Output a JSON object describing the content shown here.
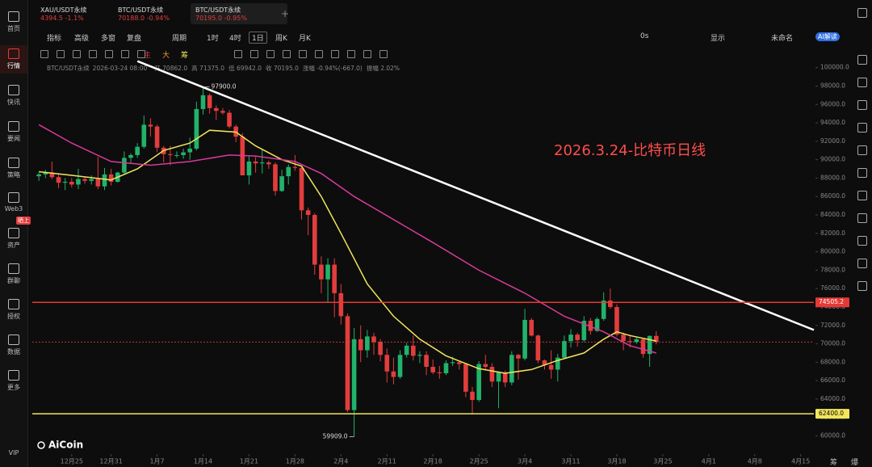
{
  "tabs": [
    {
      "symbol": "XAU/USDT永续",
      "price": "4394.5",
      "change": "-1.1%"
    },
    {
      "symbol": "BTC/USDT永续",
      "price": "70188.0",
      "change": "-0.94%"
    },
    {
      "symbol": "BTC/USDT永续",
      "price": "70195.0",
      "change": "-0.95%"
    }
  ],
  "sidebar": [
    "首页",
    "行情",
    "快讯",
    "要闻",
    "策略",
    "Web3",
    "资产",
    "群聊",
    "授权",
    "数据",
    "更多",
    "VIP"
  ],
  "sidebar_badge": "晒上",
  "toolbar": [
    "指标",
    "高级",
    "多窗",
    "复盘",
    "周期"
  ],
  "periods": [
    "1时",
    "4时",
    "1日",
    "周K",
    "月K"
  ],
  "toolbar_right": [
    "0s",
    "显示",
    "未命名",
    "AI解读"
  ],
  "draw_tools": [
    "主",
    "大",
    "筹"
  ],
  "info": [
    "BTC/USDT永续",
    "2026-03-24 08:00",
    "开 70862.0",
    "高 71375.0",
    "低 69942.0",
    "收 70195.0",
    "涨幅 -0.94%(-667.0)",
    "振幅 2.02%"
  ],
  "watermark": "AiCoin",
  "corner": [
    "筹",
    "爆"
  ],
  "chart_data": {
    "type": "candlestick",
    "title": "2026.3.24-比特币日线",
    "up_color": "#22b26b",
    "down_color": "#e23d3d",
    "grid": false,
    "xlim": [
      "12-19",
      "04-17"
    ],
    "ylim": [
      58200,
      100500
    ],
    "xticks": [
      {
        "value": "12-25",
        "label": "12月25"
      },
      {
        "value": "12-31",
        "label": "12月31"
      },
      {
        "value": "01-07",
        "label": "1月7"
      },
      {
        "value": "01-14",
        "label": "1月14"
      },
      {
        "value": "01-21",
        "label": "1月21"
      },
      {
        "value": "01-28",
        "label": "1月28"
      },
      {
        "value": "02-04",
        "label": "2月4"
      },
      {
        "value": "02-11",
        "label": "2月11"
      },
      {
        "value": "02-18",
        "label": "2月18"
      },
      {
        "value": "02-25",
        "label": "2月25"
      },
      {
        "value": "03-04",
        "label": "3月4"
      },
      {
        "value": "03-11",
        "label": "3月11"
      },
      {
        "value": "03-18",
        "label": "3月18"
      },
      {
        "value": "03-25",
        "label": "3月25"
      },
      {
        "value": "04-01",
        "label": "4月1"
      },
      {
        "value": "04-08",
        "label": "4月8"
      },
      {
        "value": "04-15",
        "label": "4月15"
      }
    ],
    "yticks": [
      {
        "value": 60000,
        "label": "60000.0"
      },
      {
        "value": 62000,
        "label": "62000.0"
      },
      {
        "value": 64000,
        "label": "64000.0"
      },
      {
        "value": 66000,
        "label": "66000.0"
      },
      {
        "value": 68000,
        "label": "68000.0"
      },
      {
        "value": 70000,
        "label": "70000.0"
      },
      {
        "value": 72000,
        "label": "72000.0"
      },
      {
        "value": 74000,
        "label": "74000.0"
      },
      {
        "value": 76000,
        "label": "76000.0"
      },
      {
        "value": 78000,
        "label": "78000.0"
      },
      {
        "value": 80000,
        "label": "80000.0"
      },
      {
        "value": 82000,
        "label": "82000.0"
      },
      {
        "value": 84000,
        "label": "84000.0"
      },
      {
        "value": 86000,
        "label": "86000.0"
      },
      {
        "value": 88000,
        "label": "88000.0"
      },
      {
        "value": 90000,
        "label": "90000.0"
      },
      {
        "value": 92000,
        "label": "92000.0"
      },
      {
        "value": 94000,
        "label": "94000.0"
      },
      {
        "value": 96000,
        "label": "96000.0"
      },
      {
        "value": 98000,
        "label": "98000.0"
      },
      {
        "value": 100000,
        "label": "100000.0"
      }
    ],
    "x": [
      "12-20",
      "12-21",
      "12-22",
      "12-23",
      "12-24",
      "12-25",
      "12-26",
      "12-27",
      "12-28",
      "12-29",
      "12-30",
      "12-31",
      "01-01",
      "01-02",
      "01-03",
      "01-04",
      "01-05",
      "01-06",
      "01-07",
      "01-08",
      "01-09",
      "01-10",
      "01-11",
      "01-12",
      "01-13",
      "01-14",
      "01-15",
      "01-16",
      "01-17",
      "01-18",
      "01-19",
      "01-20",
      "01-21",
      "01-22",
      "01-23",
      "01-24",
      "01-25",
      "01-26",
      "01-27",
      "01-28",
      "01-29",
      "01-30",
      "01-31",
      "02-01",
      "02-02",
      "02-03",
      "02-04",
      "02-05",
      "02-06",
      "02-07",
      "02-08",
      "02-09",
      "02-10",
      "02-11",
      "02-12",
      "02-13",
      "02-14",
      "02-15",
      "02-16",
      "02-17",
      "02-18",
      "02-19",
      "02-20",
      "02-21",
      "02-22",
      "02-23",
      "02-24",
      "02-25",
      "02-26",
      "02-27",
      "02-28",
      "03-01",
      "03-02",
      "03-03",
      "03-04",
      "03-05",
      "03-06",
      "03-07",
      "03-08",
      "03-09",
      "03-10",
      "03-11",
      "03-12",
      "03-13",
      "03-14",
      "03-15",
      "03-16",
      "03-17",
      "03-18",
      "03-19",
      "03-20",
      "03-21",
      "03-22",
      "03-23",
      "03-24"
    ],
    "open": [
      88200,
      88400,
      88600,
      88100,
      87500,
      87600,
      87300,
      87900,
      87700,
      87900,
      87100,
      88400,
      87600,
      88600,
      90200,
      90500,
      91400,
      93800,
      93600,
      91300,
      90600,
      90500,
      90500,
      90800,
      91200,
      95500,
      97000,
      95600,
      95300,
      95100,
      93600,
      92500,
      88300,
      89800,
      89600,
      89700,
      89500,
      86600,
      88200,
      89200,
      89100,
      84500,
      84000,
      78600,
      77000,
      78600,
      75500,
      73000,
      62800,
      70500,
      69300,
      70800,
      70200,
      68800,
      67000,
      66400,
      68800,
      69800,
      68700,
      68800,
      67500,
      66900,
      66800,
      67900,
      68000,
      67800,
      64800,
      63900,
      67800,
      67500,
      65900,
      66900,
      65800,
      68800,
      68400,
      72600,
      70900,
      68200,
      67700,
      67200,
      68500,
      70300,
      71000,
      70400,
      72500,
      71400,
      72700,
      74700,
      74000,
      71000,
      70300,
      70200,
      70500,
      68900,
      70862
    ],
    "high": [
      88600,
      88900,
      89800,
      88500,
      88000,
      88000,
      89000,
      88200,
      88300,
      90300,
      89100,
      89000,
      88700,
      90900,
      90700,
      91800,
      94800,
      94500,
      93800,
      91500,
      91500,
      90900,
      91200,
      92400,
      96300,
      97900,
      97200,
      95900,
      95600,
      95400,
      93800,
      92900,
      90400,
      90300,
      91200,
      89900,
      89700,
      88900,
      89500,
      90500,
      89200,
      84800,
      84200,
      79500,
      79300,
      79300,
      76500,
      73300,
      71700,
      72000,
      71500,
      71200,
      70500,
      69500,
      68500,
      69300,
      70100,
      70900,
      69200,
      69200,
      68300,
      67600,
      68200,
      68600,
      68200,
      67900,
      65300,
      68100,
      68800,
      67900,
      67000,
      67100,
      69200,
      68900,
      73800,
      72800,
      71000,
      68300,
      69300,
      68900,
      70900,
      71600,
      71200,
      73000,
      72800,
      72900,
      75600,
      76000,
      74300,
      71200,
      71000,
      70700,
      70600,
      70900,
      71375
    ],
    "low": [
      87700,
      88000,
      87900,
      86900,
      86700,
      87000,
      86800,
      87400,
      87300,
      86800,
      86700,
      87200,
      87500,
      88400,
      89600,
      90200,
      91200,
      92500,
      90800,
      89700,
      89400,
      90200,
      90100,
      90000,
      91000,
      94900,
      95000,
      94300,
      94900,
      93400,
      91900,
      88300,
      87300,
      88600,
      88500,
      89000,
      86100,
      86500,
      87300,
      88800,
      83500,
      81800,
      77500,
      75500,
      74500,
      72900,
      72100,
      62600,
      59909,
      68000,
      68500,
      68800,
      68100,
      65800,
      65600,
      66200,
      68500,
      68200,
      67900,
      66600,
      66700,
      66200,
      66600,
      67600,
      67200,
      64200,
      62400,
      63700,
      67200,
      65300,
      63000,
      65300,
      65500,
      66100,
      68200,
      70800,
      67900,
      67200,
      66200,
      65900,
      68400,
      69600,
      69700,
      70200,
      71000,
      71300,
      72500,
      73800,
      70800,
      69300,
      69600,
      70000,
      68500,
      67500,
      69942
    ],
    "close": [
      88400,
      88600,
      88100,
      87500,
      87600,
      87300,
      87900,
      87700,
      87900,
      87100,
      88400,
      87600,
      88600,
      90200,
      90500,
      91400,
      93800,
      93600,
      91300,
      90600,
      90500,
      90500,
      90800,
      91200,
      95500,
      97000,
      95600,
      95300,
      95100,
      93600,
      92500,
      88300,
      89800,
      89600,
      89700,
      89500,
      86600,
      88200,
      89200,
      89100,
      84500,
      84000,
      78600,
      77000,
      78600,
      75500,
      73000,
      62800,
      70500,
      69300,
      70800,
      70200,
      68800,
      67000,
      66400,
      68800,
      69800,
      68700,
      68800,
      67500,
      66900,
      66800,
      67900,
      68000,
      67800,
      64800,
      63900,
      67800,
      67500,
      65900,
      66900,
      65800,
      68800,
      68400,
      72600,
      70900,
      68200,
      67700,
      67200,
      68500,
      70300,
      71000,
      70400,
      72500,
      71400,
      72700,
      74700,
      74000,
      71000,
      70300,
      70200,
      70500,
      68900,
      70862,
      70195
    ],
    "lines": [
      {
        "color": "#f2e55c",
        "width": 1.5,
        "x": [
          "12-20",
          "12-25",
          "12-31",
          "01-04",
          "01-08",
          "01-12",
          "01-15",
          "01-19",
          "01-22",
          "01-26",
          "01-29",
          "02-01",
          "02-04",
          "02-08",
          "02-12",
          "02-16",
          "02-20",
          "02-25",
          "03-01",
          "03-05",
          "03-09",
          "03-13",
          "03-16",
          "03-18",
          "03-20",
          "03-24"
        ],
        "values": [
          88700,
          88300,
          87800,
          89000,
          91000,
          91800,
          93200,
          93000,
          91500,
          90000,
          89300,
          86000,
          82000,
          76500,
          73000,
          70500,
          68700,
          67300,
          66800,
          67200,
          68200,
          69000,
          70500,
          71300,
          70900,
          70300
        ]
      },
      {
        "color": "#d63a9a",
        "width": 1.5,
        "x": [
          "12-20",
          "12-25",
          "12-31",
          "01-06",
          "01-12",
          "01-18",
          "01-22",
          "01-28",
          "02-01",
          "02-06",
          "02-12",
          "02-18",
          "02-25",
          "03-04",
          "03-10",
          "03-16",
          "03-20",
          "03-24"
        ],
        "values": [
          93800,
          91800,
          89800,
          89400,
          89800,
          90500,
          90400,
          89800,
          88500,
          86000,
          83500,
          81000,
          78000,
          75500,
          73000,
          71300,
          69800,
          69000
        ]
      },
      {
        "color": "#ffffff",
        "width": 2.5,
        "x": [
          "01-04",
          "04-17"
        ],
        "values": [
          100700,
          71500
        ]
      }
    ],
    "hlines": [
      {
        "value": 74505.2,
        "color": "#e53935",
        "text_color": "#ffffff"
      },
      {
        "value": 62400,
        "label": "62400.0",
        "color": "#f2e55c",
        "text_color": "#000000"
      }
    ],
    "last_price": 70195,
    "marks": [
      {
        "x": "01-14",
        "value": 97900,
        "label": "97900.0"
      },
      {
        "x": "02-06",
        "value": 59909,
        "label": "59909.0"
      }
    ]
  }
}
